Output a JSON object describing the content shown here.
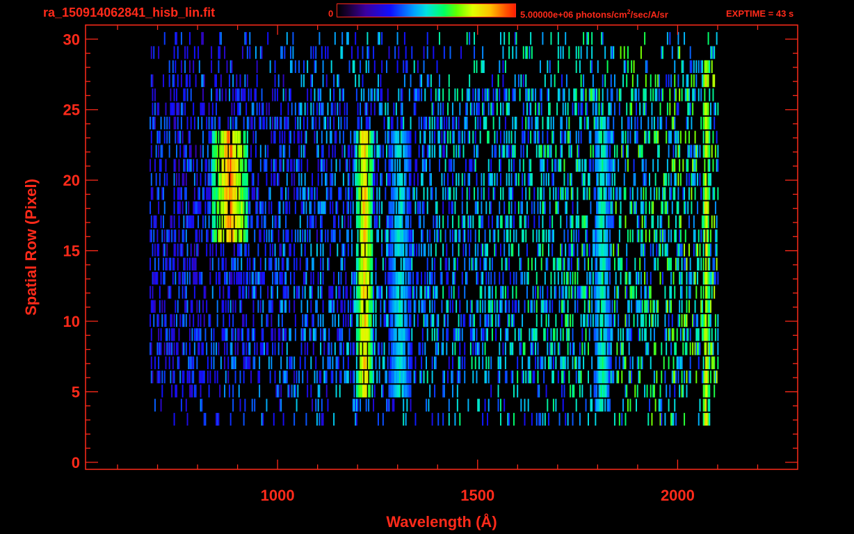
{
  "header": {
    "title": "ra_150914062841_hisb_lin.fit",
    "colorbar_min": "0",
    "colorbar_max_prefix": "5.00000e+06 photons/cm",
    "colorbar_max_sup": "2",
    "colorbar_max_suffix": "/sec/A/sr",
    "exptime": "EXPTIME = 43 s"
  },
  "colors": {
    "axis": "#ff2a1a",
    "background": "#000000"
  },
  "chart_data": {
    "type": "heatmap",
    "title": "ra_150914062841_hisb_lin.fit",
    "xlabel": "Wavelength (Å)",
    "ylabel": "Spatial Row (Pixel)",
    "xlim": [
      520,
      2300
    ],
    "ylim": [
      -0.5,
      31
    ],
    "x_ticks": [
      1000,
      1500,
      2000
    ],
    "y_ticks": [
      0,
      5,
      10,
      15,
      20,
      25,
      30
    ],
    "colorbar": {
      "min": 0,
      "max": 5000000,
      "units": "photons/cm^2/sec/A/sr"
    },
    "spectrum_extent": {
      "x": [
        680,
        2100
      ],
      "rows": [
        3,
        30
      ]
    },
    "features": [
      {
        "center": 1216,
        "width": 22,
        "rows": [
          5,
          23
        ],
        "level": 0.88
      },
      {
        "center": 880,
        "width": 45,
        "rows": [
          16,
          23
        ],
        "level": 0.95
      },
      {
        "center": 1304,
        "width": 28,
        "rows": [
          5,
          23
        ],
        "level": 0.55
      },
      {
        "center": 1810,
        "width": 20,
        "rows": [
          4,
          24
        ],
        "level": 0.6
      },
      {
        "center": 2070,
        "width": 10,
        "rows": [
          2,
          28
        ],
        "level": 0.85
      }
    ]
  }
}
